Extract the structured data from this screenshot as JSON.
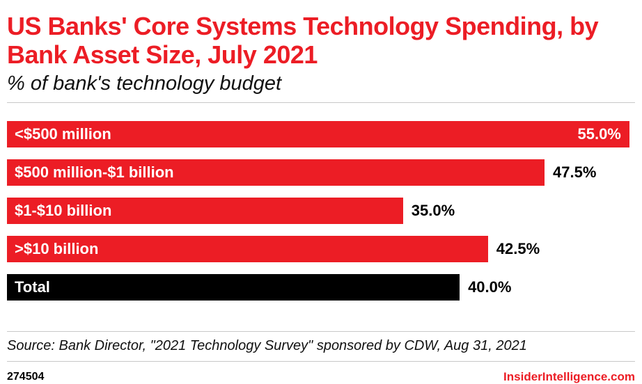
{
  "header": {
    "title": "US Banks' Core Systems Technology Spending, by Bank Asset Size, July 2021",
    "subtitle": "% of bank's technology budget"
  },
  "chart_data": {
    "type": "bar",
    "orientation": "horizontal",
    "title": "US Banks' Core Systems Technology Spending, by Bank Asset Size, July 2021",
    "subtitle": "% of bank's technology budget",
    "categories": [
      "<$500 million",
      "$500 million-$1 billion",
      "$1-$10 billion",
      ">$10 billion",
      "Total"
    ],
    "values": [
      55.0,
      47.5,
      35.0,
      42.5,
      40.0
    ],
    "value_labels": [
      "55.0%",
      "47.5%",
      "35.0%",
      "42.5%",
      "40.0%"
    ],
    "bar_colors": [
      "#ec1d25",
      "#ec1d25",
      "#ec1d25",
      "#ec1d25",
      "#000000"
    ],
    "xmax": 55.5,
    "xlabel": "",
    "ylabel": "",
    "grid": false,
    "legend": "none"
  },
  "source": {
    "text": "Source: Bank Director, \"2021 Technology Survey\" sponsored by CDW, Aug 31, 2021"
  },
  "footer": {
    "chart_id": "274504",
    "brand": "InsiderIntelligence.com"
  },
  "colors": {
    "accent_red": "#ec1d25",
    "bar_black": "#000000",
    "divider_gray": "#c8c8c8"
  }
}
